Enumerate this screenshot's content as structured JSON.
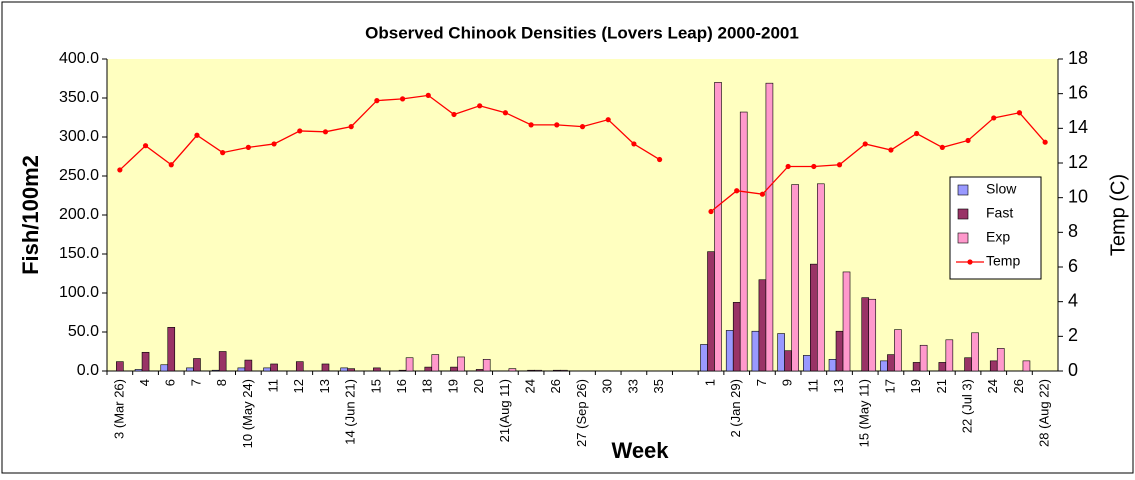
{
  "chart_data": {
    "type": "bar-line",
    "title": "Observed Chinook Densities (Lovers Leap) 2000-2001",
    "x_label": "Week",
    "y_label": "Fish/100m2",
    "y2_label": "Temp (C)",
    "categories": [
      "3 (Mar 26)",
      "4",
      "6",
      "7",
      "8",
      "10 (May 24)",
      "11",
      "12",
      "13",
      "14 (Jun 21)",
      "15",
      "16",
      "18",
      "19",
      "20",
      "21(Aug 11)",
      "24",
      "26",
      "27 (Sep 26)",
      "30",
      "33",
      "35",
      null,
      "1",
      "2 (Jan 29)",
      "7",
      "9",
      "11",
      "13",
      "15 (May 11)",
      "17",
      "19",
      "21",
      "22 (Jul 3)",
      "24",
      "26",
      "28 (Aug 22)"
    ],
    "series": [
      {
        "name": "Slow",
        "color": "#9999ff",
        "values": [
          0,
          2,
          8,
          4,
          1,
          4,
          4,
          0,
          0,
          4,
          0,
          0,
          0,
          0,
          0,
          0,
          0,
          0,
          0,
          0,
          0,
          0,
          null,
          34,
          52,
          51,
          48,
          20,
          15,
          0,
          13,
          0,
          0,
          0,
          0,
          0,
          0
        ]
      },
      {
        "name": "Fast",
        "color": "#993366",
        "values": [
          12,
          24,
          56,
          16,
          25,
          14,
          9,
          12,
          9,
          3,
          4,
          1,
          5,
          5,
          2,
          0,
          1,
          1,
          0,
          0,
          0,
          0,
          null,
          153,
          88,
          117,
          26,
          137,
          51,
          94,
          21,
          11,
          11,
          17,
          13,
          0,
          0
        ]
      },
      {
        "name": "Exp",
        "color": "#ff99cc",
        "values": [
          0,
          0,
          0,
          0,
          0,
          0,
          0,
          0,
          0,
          0,
          0,
          17,
          21,
          18,
          15,
          3,
          1,
          1,
          0,
          0,
          0,
          0,
          null,
          370,
          332,
          369,
          239,
          240,
          127,
          92,
          53,
          33,
          40,
          49,
          29,
          13,
          0
        ]
      },
      {
        "name": "Temp",
        "color": "#ff0000",
        "axis": "y2",
        "values": [
          11.6,
          13.0,
          11.9,
          13.6,
          12.6,
          12.9,
          13.1,
          13.85,
          13.8,
          14.1,
          15.6,
          15.7,
          15.9,
          14.8,
          15.3,
          14.9,
          14.2,
          14.2,
          14.1,
          14.5,
          13.1,
          12.2,
          null,
          9.2,
          10.4,
          10.2,
          11.8,
          11.8,
          11.9,
          13.1,
          12.75,
          13.7,
          12.9,
          13.3,
          14.6,
          14.9,
          13.2
        ]
      }
    ],
    "ylim": [
      0,
      400
    ],
    "yticks": [
      {
        "value": 0,
        "label": "0.0"
      },
      {
        "value": 50,
        "label": "50.0"
      },
      {
        "value": 100,
        "label": "100.0"
      },
      {
        "value": 150,
        "label": "150.0"
      },
      {
        "value": 200,
        "label": "200.0"
      },
      {
        "value": 250,
        "label": "250.0"
      },
      {
        "value": 300,
        "label": "300.0"
      },
      {
        "value": 350,
        "label": "350.0"
      },
      {
        "value": 400,
        "label": "400.0"
      }
    ],
    "y2lim": [
      0,
      18
    ],
    "y2ticks": [
      0,
      2,
      4,
      6,
      8,
      10,
      12,
      14,
      16,
      18
    ],
    "grid": false,
    "legend": "right"
  }
}
